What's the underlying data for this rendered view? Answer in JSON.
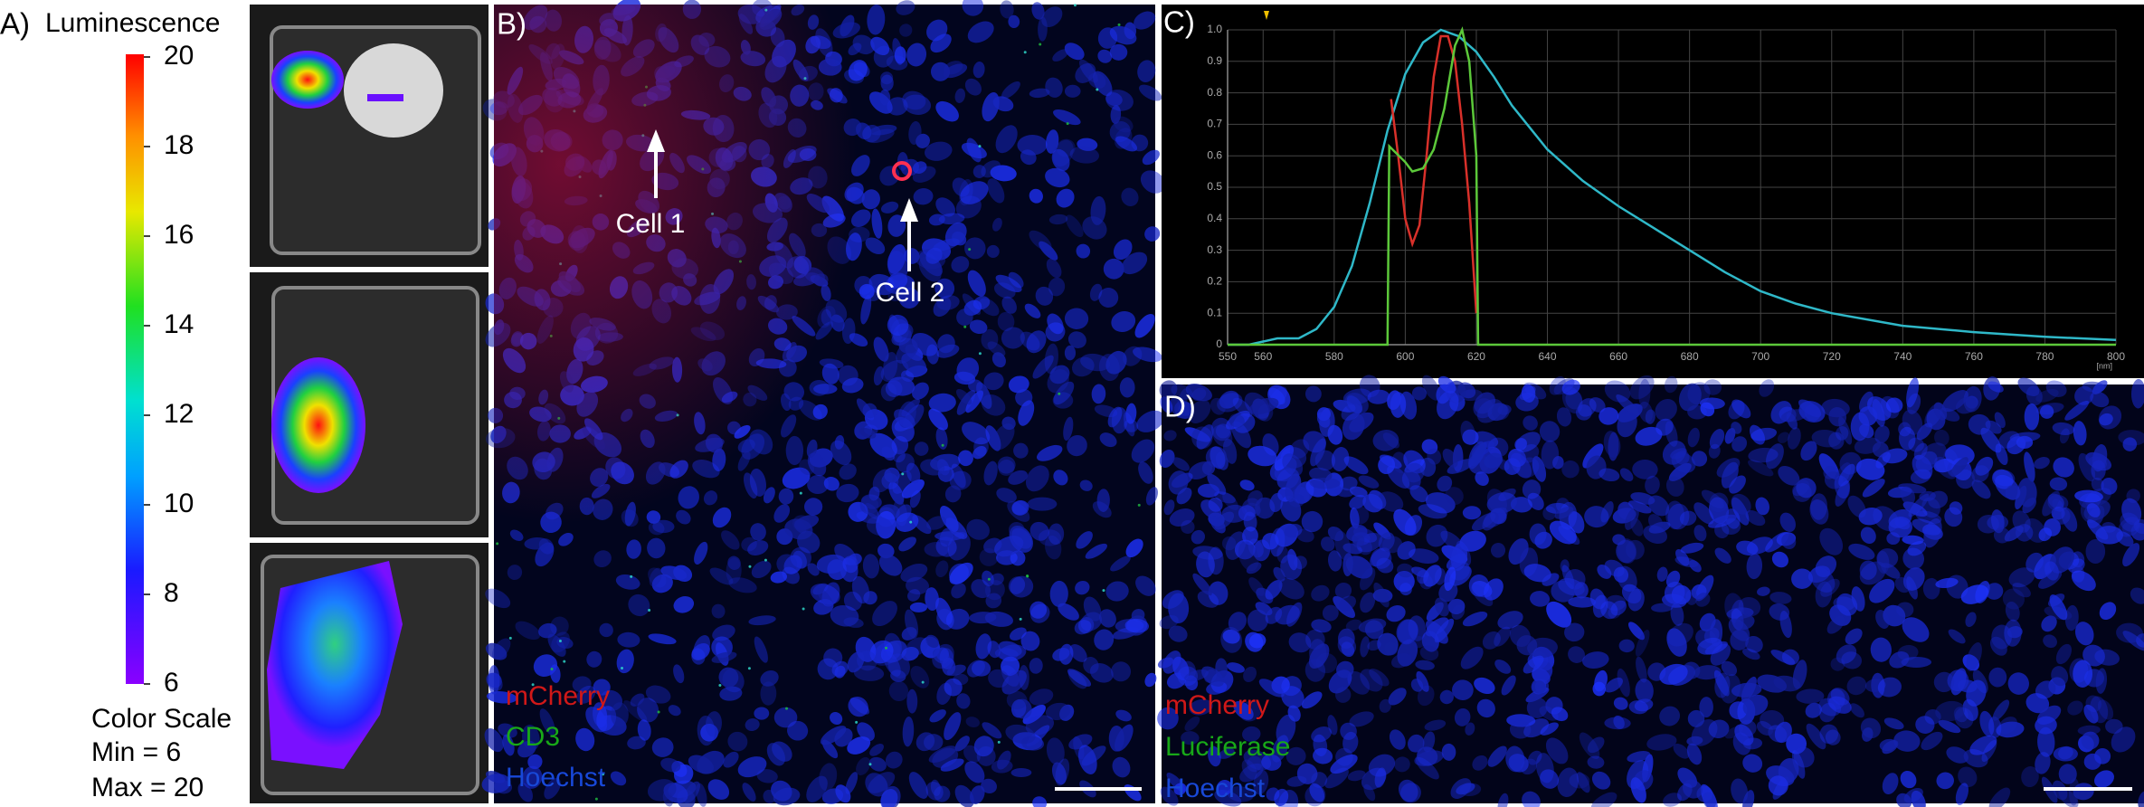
{
  "panel_a": {
    "label": "A)",
    "colorbar_title": "Luminescence",
    "colorbar": {
      "lim": [
        6,
        20
      ],
      "ticks": [
        6,
        8,
        10,
        12,
        14,
        16,
        18,
        20
      ]
    },
    "scale_title": "Color Scale",
    "min_text": "Min = 6",
    "max_text": "Max = 20"
  },
  "panel_b": {
    "label": "B)",
    "annotations": [
      "Cell 1",
      "Cell 2"
    ],
    "legend": [
      "mCherry",
      "CD3",
      "Hoechst"
    ]
  },
  "chart_data": {
    "type": "line",
    "panel_label": "C)",
    "x_unit": "[nm]",
    "xlim": [
      550,
      800
    ],
    "xticks": [
      550,
      560,
      580,
      600,
      620,
      640,
      660,
      680,
      700,
      720,
      740,
      760,
      780,
      800
    ],
    "ylim": [
      0,
      1
    ],
    "yticks": [
      0,
      0.1,
      0.2,
      0.3,
      0.4,
      0.5,
      0.6,
      0.7,
      0.8,
      0.9,
      {
        "value": 1,
        "label": "1.0"
      }
    ],
    "grid": true,
    "series": [
      {
        "color": "#2fb8c8",
        "x": [
          550,
          556,
          560,
          564,
          570,
          575,
          580,
          585,
          590,
          595,
          600,
          605,
          610,
          615,
          620,
          625,
          630,
          640,
          650,
          660,
          670,
          680,
          690,
          700,
          710,
          720,
          740,
          760,
          780,
          800
        ],
        "values": [
          0,
          0,
          0.01,
          0.02,
          0.02,
          0.05,
          0.12,
          0.25,
          0.45,
          0.68,
          0.86,
          0.96,
          1.0,
          0.98,
          0.93,
          0.85,
          0.76,
          0.62,
          0.52,
          0.44,
          0.37,
          0.3,
          0.23,
          0.17,
          0.13,
          0.1,
          0.06,
          0.04,
          0.025,
          0.015
        ]
      },
      {
        "color": "#d8302a",
        "x": [
          596,
          598,
          600,
          602,
          604,
          606,
          608,
          610,
          612,
          614,
          616,
          618,
          620
        ],
        "values": [
          0.78,
          0.6,
          0.4,
          0.32,
          0.38,
          0.6,
          0.85,
          0.98,
          0.98,
          0.9,
          0.7,
          0.45,
          0.1
        ]
      },
      {
        "color": "#5cc83a",
        "x": [
          550,
          595,
          595.5,
          600,
          602,
          605,
          608,
          611,
          614,
          616,
          618,
          620,
          620.5,
          800
        ],
        "values": [
          0,
          0,
          0.63,
          0.58,
          0.55,
          0.56,
          0.62,
          0.75,
          0.95,
          1.0,
          0.9,
          0.6,
          0,
          0
        ]
      }
    ]
  },
  "panel_d": {
    "label": "D)",
    "legend": [
      "mCherry",
      "Luciferase",
      "Hoechst"
    ]
  }
}
